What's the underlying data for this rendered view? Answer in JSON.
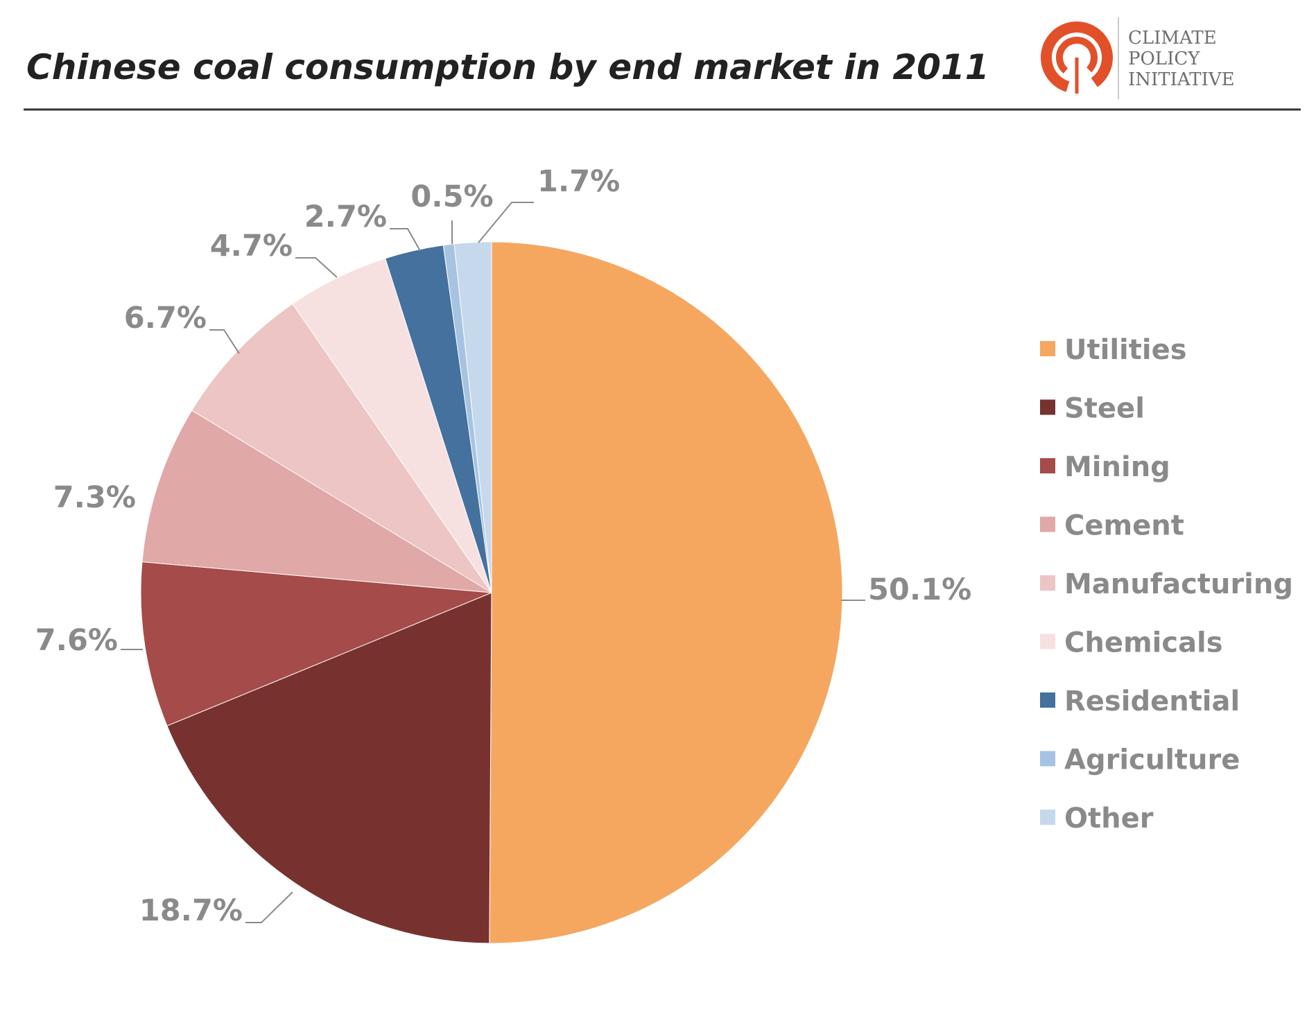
{
  "header": {
    "title": "Chinese coal consumption by end market in 2011",
    "logo": {
      "org_lines": [
        "CLIMATE",
        "POLICY",
        "INITIATIVE"
      ],
      "icon": "cpi-ring-logo",
      "color": "#e2502a"
    }
  },
  "chart_data": {
    "type": "pie",
    "start_angle": "top",
    "direction": "clockwise",
    "legend_position": "right",
    "slices": [
      {
        "name": "Utilities",
        "value": 50.1,
        "label": "50.1%",
        "color": "#f5a760"
      },
      {
        "name": "Steel",
        "value": 18.7,
        "label": "18.7%",
        "color": "#773230"
      },
      {
        "name": "Mining",
        "value": 7.6,
        "label": "7.6%",
        "color": "#a54b49"
      },
      {
        "name": "Cement",
        "value": 7.3,
        "label": "7.3%",
        "color": "#e0a8a7"
      },
      {
        "name": "Manufacturing",
        "value": 6.7,
        "label": "6.7%",
        "color": "#ecc5c4"
      },
      {
        "name": "Chemicals",
        "value": 4.7,
        "label": "4.7%",
        "color": "#f7e1e0"
      },
      {
        "name": "Residential",
        "value": 2.7,
        "label": "2.7%",
        "color": "#44719e"
      },
      {
        "name": "Agriculture",
        "value": 0.5,
        "label": "0.5%",
        "color": "#a6c4e1"
      },
      {
        "name": "Other",
        "value": 1.7,
        "label": "1.7%",
        "color": "#c6d8eb"
      }
    ]
  }
}
